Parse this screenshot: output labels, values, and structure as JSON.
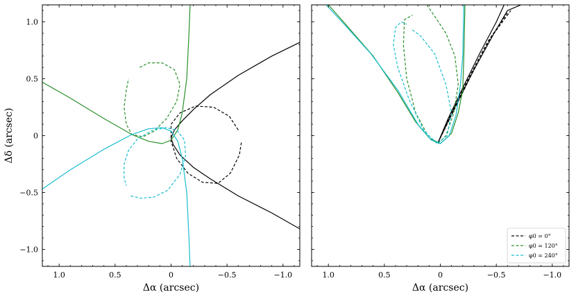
{
  "chart_data": [
    {
      "type": "line",
      "panel": "left",
      "xlabel": "Δα (arcsec)",
      "ylabel": "Δδ (arcsec)",
      "xlim": [
        1.15,
        -1.15
      ],
      "ylim": [
        -1.15,
        1.15
      ],
      "x_ticks": [
        1.0,
        0.5,
        0,
        -0.5,
        -1.0
      ],
      "x_tick_labels": [
        "1.0",
        "0.5",
        "0",
        "−0.5",
        "−1.0"
      ],
      "y_ticks": [
        1.0,
        0.5,
        0,
        -0.5,
        -1.0
      ],
      "y_tick_labels": [
        "1.0",
        "0.5",
        "0",
        "−0.5",
        "−1.0"
      ],
      "series": [
        {
          "color": "#000000",
          "style": "solid",
          "points": [
            [
              -1.15,
              0.82
            ],
            [
              -0.9,
              0.7
            ],
            [
              -0.6,
              0.53
            ],
            [
              -0.35,
              0.36
            ],
            [
              -0.2,
              0.23
            ],
            [
              -0.1,
              0.13
            ],
            [
              -0.03,
              0.05
            ],
            [
              0.0,
              -0.02
            ],
            [
              -0.02,
              -0.08
            ],
            [
              -0.08,
              -0.17
            ],
            [
              -0.2,
              -0.28
            ],
            [
              -0.35,
              -0.38
            ],
            [
              -0.6,
              -0.53
            ],
            [
              -0.9,
              -0.68
            ],
            [
              -1.15,
              -0.82
            ]
          ]
        },
        {
          "color": "#000000",
          "style": "dashed",
          "points": [
            [
              -0.6,
              0.05
            ],
            [
              -0.52,
              0.17
            ],
            [
              -0.38,
              0.25
            ],
            [
              -0.22,
              0.26
            ],
            [
              -0.08,
              0.2
            ],
            [
              0.0,
              0.1
            ],
            [
              0.0,
              -0.05
            ],
            [
              -0.05,
              -0.2
            ],
            [
              -0.15,
              -0.33
            ],
            [
              -0.28,
              -0.41
            ],
            [
              -0.42,
              -0.42
            ],
            [
              -0.53,
              -0.33
            ],
            [
              -0.61,
              -0.17
            ],
            [
              -0.63,
              -0.05
            ]
          ]
        },
        {
          "color": "#2a8f2a",
          "style": "solid",
          "points": [
            [
              1.15,
              0.47
            ],
            [
              0.9,
              0.33
            ],
            [
              0.6,
              0.15
            ],
            [
              0.35,
              0.01
            ],
            [
              0.2,
              -0.05
            ],
            [
              0.08,
              -0.07
            ],
            [
              0.0,
              -0.04
            ],
            [
              -0.06,
              0.05
            ],
            [
              -0.1,
              0.2
            ],
            [
              -0.14,
              0.5
            ],
            [
              -0.16,
              0.9
            ],
            [
              -0.17,
              1.15
            ]
          ]
        },
        {
          "color": "#2a8f2a",
          "style": "dashed",
          "points": [
            [
              0.28,
              0.6
            ],
            [
              0.2,
              0.64
            ],
            [
              0.08,
              0.64
            ],
            [
              -0.03,
              0.58
            ],
            [
              -0.08,
              0.45
            ],
            [
              -0.05,
              0.3
            ],
            [
              0.04,
              0.15
            ],
            [
              0.15,
              0.04
            ],
            [
              0.25,
              -0.01
            ],
            [
              0.35,
              0.01
            ],
            [
              0.4,
              0.1
            ],
            [
              0.42,
              0.25
            ],
            [
              0.4,
              0.4
            ],
            [
              0.38,
              0.5
            ]
          ]
        },
        {
          "color": "#17becf",
          "style": "solid",
          "points": [
            [
              1.15,
              -0.47
            ],
            [
              0.9,
              -0.3
            ],
            [
              0.6,
              -0.12
            ],
            [
              0.35,
              0.01
            ],
            [
              0.2,
              0.06
            ],
            [
              0.08,
              0.07
            ],
            [
              0.0,
              0.04
            ],
            [
              -0.06,
              -0.05
            ],
            [
              -0.1,
              -0.2
            ],
            [
              -0.14,
              -0.5
            ],
            [
              -0.16,
              -0.9
            ],
            [
              -0.17,
              -1.15
            ]
          ]
        },
        {
          "color": "#17becf",
          "style": "dashed",
          "points": [
            [
              0.36,
              -0.53
            ],
            [
              0.27,
              -0.55
            ],
            [
              0.15,
              -0.54
            ],
            [
              0.03,
              -0.48
            ],
            [
              -0.08,
              -0.34
            ],
            [
              -0.13,
              -0.18
            ],
            [
              -0.12,
              -0.04
            ],
            [
              -0.05,
              0.05
            ],
            [
              0.05,
              0.07
            ],
            [
              0.18,
              0.04
            ],
            [
              0.3,
              -0.03
            ],
            [
              0.38,
              -0.13
            ],
            [
              0.42,
              -0.25
            ],
            [
              0.42,
              -0.37
            ],
            [
              0.4,
              -0.44
            ]
          ]
        }
      ]
    },
    {
      "type": "line",
      "panel": "right",
      "xlabel": "Δα (arcsec)",
      "ylabel": "",
      "xlim": [
        1.15,
        -1.15
      ],
      "ylim": [
        -1.15,
        1.15
      ],
      "x_ticks": [
        1.0,
        0.5,
        0,
        -0.5,
        -1.0
      ],
      "x_tick_labels": [
        "1.0",
        "0.5",
        "0",
        "−0.5",
        "−1.0"
      ],
      "legend_position": "bottom-right",
      "legend": [
        {
          "label": "φ0 = 0°",
          "color": "#000000"
        },
        {
          "label": "φ0 = 120°",
          "color": "#2a8f2a"
        },
        {
          "label": "φ0 = 240°",
          "color": "#17becf"
        }
      ],
      "series": [
        {
          "color": "#000000",
          "style": "solid",
          "points": [
            [
              0.02,
              -0.06
            ],
            [
              -0.13,
              0.25
            ],
            [
              -0.3,
              0.58
            ],
            [
              -0.48,
              0.9
            ],
            [
              -0.6,
              1.1
            ],
            [
              -0.72,
              1.15
            ]
          ]
        },
        {
          "color": "#000000",
          "style": "solid",
          "points": [
            [
              0.02,
              -0.06
            ],
            [
              -0.07,
              0.15
            ],
            [
              -0.2,
              0.42
            ],
            [
              -0.35,
              0.72
            ],
            [
              -0.5,
              1.0
            ],
            [
              -0.57,
              1.15
            ]
          ]
        },
        {
          "color": "#000000",
          "style": "dashed",
          "points": [
            [
              0.02,
              -0.06
            ],
            [
              -0.1,
              0.2
            ],
            [
              -0.25,
              0.5
            ],
            [
              -0.42,
              0.82
            ],
            [
              -0.6,
              1.08
            ]
          ]
        },
        {
          "color": "#000000",
          "style": "dashed",
          "points": [
            [
              0.02,
              -0.06
            ],
            [
              -0.12,
              0.22
            ],
            [
              -0.27,
              0.52
            ],
            [
              -0.45,
              0.86
            ],
            [
              -0.63,
              1.1
            ]
          ]
        },
        {
          "color": "#2a8f2a",
          "style": "solid",
          "points": [
            [
              1.0,
              1.15
            ],
            [
              0.82,
              0.95
            ],
            [
              0.6,
              0.7
            ],
            [
              0.38,
              0.38
            ],
            [
              0.22,
              0.12
            ],
            [
              0.1,
              -0.02
            ],
            [
              0.0,
              -0.07
            ],
            [
              -0.1,
              0.02
            ],
            [
              -0.16,
              0.2
            ],
            [
              -0.2,
              0.4
            ],
            [
              -0.21,
              0.7
            ],
            [
              -0.22,
              1.15
            ]
          ]
        },
        {
          "color": "#2a8f2a",
          "style": "dashed",
          "points": [
            [
              0.12,
              1.15
            ],
            [
              0.05,
              1.05
            ],
            [
              -0.05,
              0.9
            ],
            [
              -0.13,
              0.7
            ],
            [
              -0.16,
              0.45
            ],
            [
              -0.12,
              0.2
            ],
            [
              -0.05,
              0.0
            ],
            [
              0.02,
              -0.07
            ],
            [
              0.1,
              -0.02
            ],
            [
              0.22,
              0.2
            ],
            [
              0.3,
              0.5
            ],
            [
              0.33,
              0.8
            ],
            [
              0.32,
              1.02
            ],
            [
              0.25,
              1.06
            ]
          ]
        },
        {
          "color": "#17becf",
          "style": "solid",
          "points": [
            [
              1.02,
              1.15
            ],
            [
              0.85,
              0.97
            ],
            [
              0.62,
              0.72
            ],
            [
              0.38,
              0.4
            ],
            [
              0.2,
              0.1
            ],
            [
              0.08,
              -0.04
            ],
            [
              0.0,
              -0.07
            ],
            [
              -0.08,
              0.0
            ],
            [
              -0.14,
              0.18
            ],
            [
              -0.18,
              0.45
            ],
            [
              -0.2,
              0.7
            ],
            [
              -0.21,
              1.15
            ]
          ]
        },
        {
          "color": "#17becf",
          "style": "dashed",
          "points": [
            [
              0.25,
              0.93
            ],
            [
              0.18,
              0.88
            ],
            [
              0.05,
              0.72
            ],
            [
              -0.05,
              0.45
            ],
            [
              -0.1,
              0.2
            ],
            [
              -0.06,
              0.0
            ],
            [
              0.03,
              -0.07
            ],
            [
              0.15,
              0.05
            ],
            [
              0.28,
              0.32
            ],
            [
              0.38,
              0.6
            ],
            [
              0.42,
              0.8
            ],
            [
              0.4,
              0.95
            ],
            [
              0.35,
              1.0
            ],
            [
              0.3,
              0.98
            ]
          ]
        }
      ]
    }
  ]
}
